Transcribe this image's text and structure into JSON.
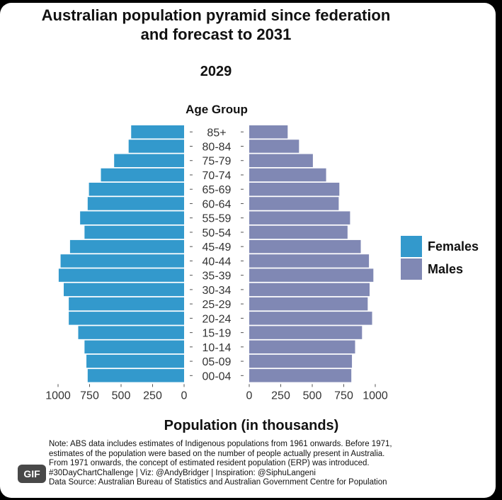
{
  "chart_data": {
    "type": "bar",
    "title": "Australian population pyramid since federation and forecast to 2031",
    "subtitle": "2029",
    "ylabel": "Age Group",
    "xlabel": "Population (in thousands)",
    "categories": [
      "00-04",
      "05-09",
      "10-14",
      "15-19",
      "20-24",
      "25-29",
      "30-34",
      "35-39",
      "40-44",
      "45-49",
      "50-54",
      "55-59",
      "60-64",
      "65-69",
      "70-74",
      "75-79",
      "80-84",
      "85+"
    ],
    "series": [
      {
        "name": "Females",
        "values": [
          765,
          775,
          790,
          840,
          915,
          915,
          955,
          995,
          980,
          905,
          790,
          825,
          765,
          755,
          660,
          555,
          440,
          420
        ]
      },
      {
        "name": "Males",
        "values": [
          810,
          815,
          840,
          895,
          975,
          940,
          955,
          985,
          950,
          885,
          780,
          800,
          710,
          715,
          610,
          505,
          395,
          305
        ]
      }
    ],
    "xlim": [
      0,
      1000
    ],
    "xticks": [
      "1000",
      "750",
      "500",
      "250",
      "0"
    ],
    "xticks_right": [
      "0",
      "250",
      "500",
      "750",
      "1000"
    ],
    "colors": {
      "Females": "#3399cc",
      "Males": "#8088b4"
    },
    "legend_position": "right",
    "grid": false
  },
  "notes": [
    "Note: ABS data includes estimates of Indigenous populations from 1961 onwards. Before 1971,",
    "estimates of the population were based on the number of people actually present in Australia.",
    "From 1971 onwards, the concept of estimated resident population (ERP) was introduced.",
    "#30DayChartChallenge | Viz: @AndyBridger | Inspiration: @SiphuLangeni",
    "Data Source: Australian Bureau of Statistics and Australian Government Centre for Population"
  ],
  "badge": "GIF"
}
